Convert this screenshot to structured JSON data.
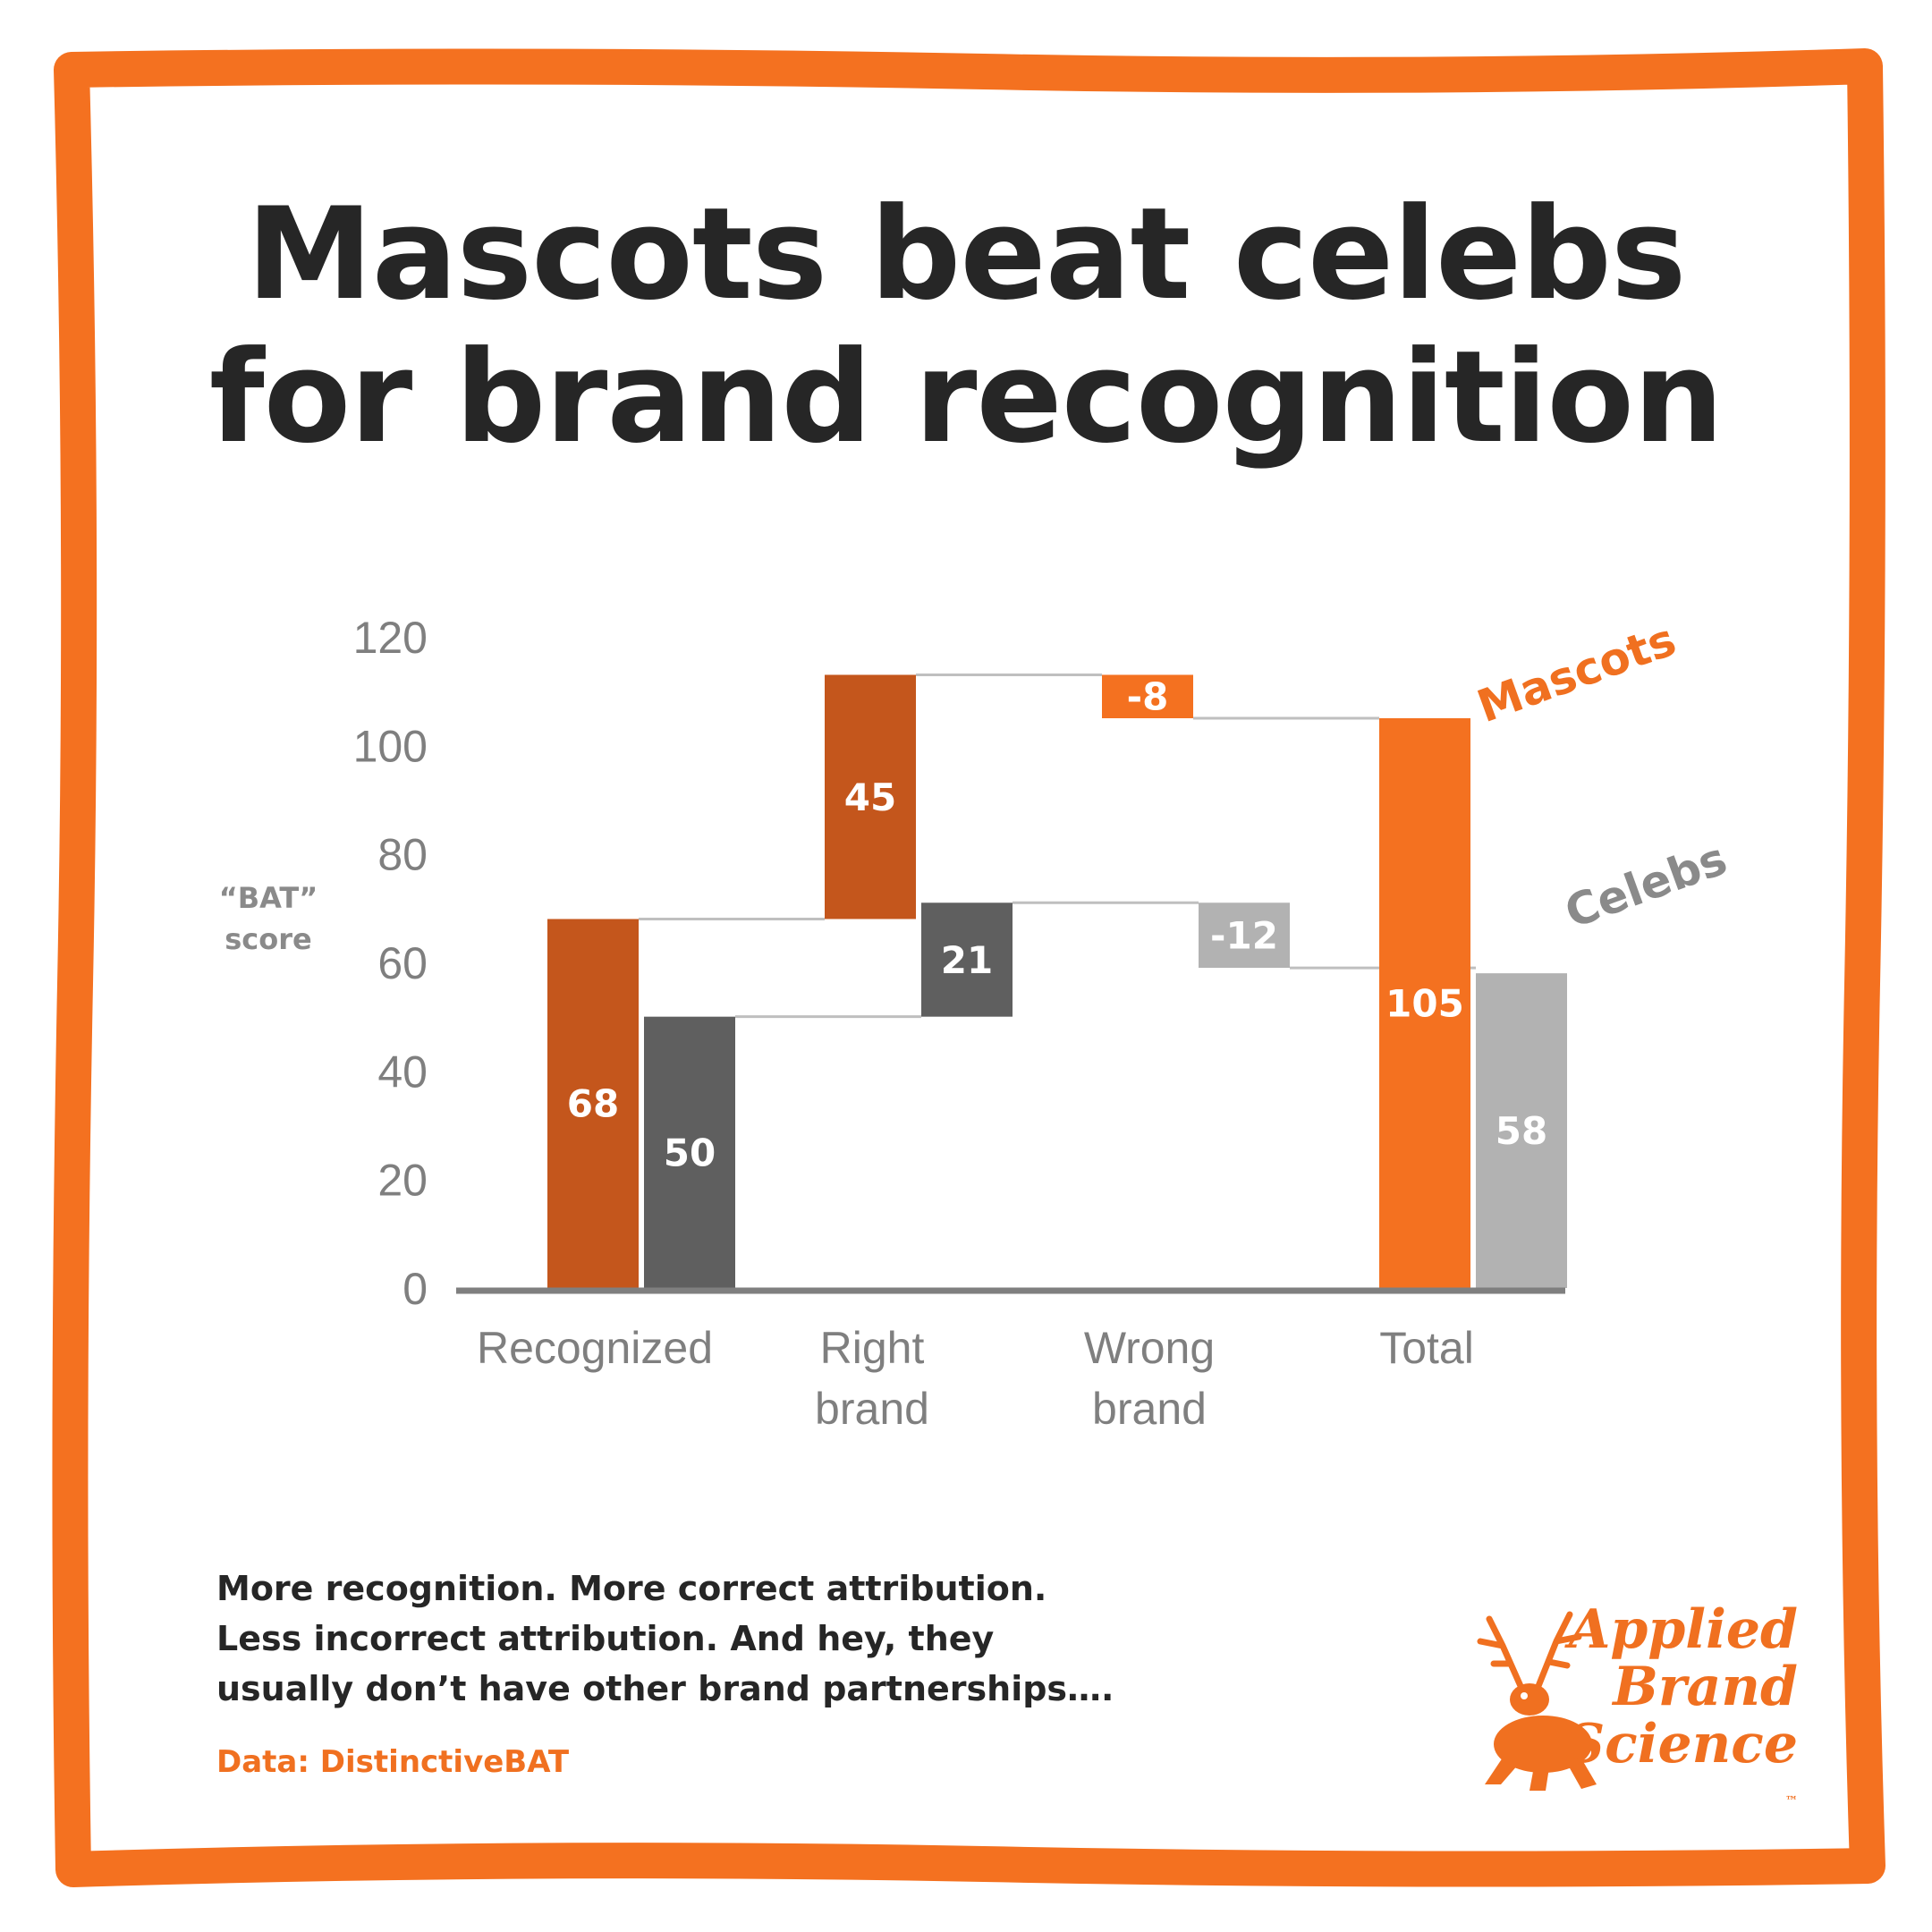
{
  "title": {
    "line1": "Mascots beat celebs",
    "line2": "for brand recognition"
  },
  "chart_data": {
    "type": "waterfall",
    "categories": [
      "Recognized",
      "Right brand",
      "Wrong brand",
      "Total"
    ],
    "category_lines": [
      [
        "Recognized"
      ],
      [
        "Right",
        "brand"
      ],
      [
        "Wrong",
        "brand"
      ],
      [
        "Total"
      ]
    ],
    "ylabel_lines": [
      "“BAT”",
      "score"
    ],
    "ylim": [
      0,
      120
    ],
    "yticks": [
      "0",
      "20",
      "40",
      "60",
      "80",
      "100",
      "120"
    ],
    "grid": false,
    "series": [
      {
        "name": "Mascots",
        "values": [
          68,
          45,
          -8,
          105
        ],
        "labels": [
          "68",
          "45",
          "-8",
          "105"
        ],
        "colors": [
          "#c4561c",
          "#c4561c",
          "#f47120",
          "#f47120"
        ]
      },
      {
        "name": "Celebs",
        "values": [
          50,
          21,
          -12,
          58
        ],
        "labels": [
          "50",
          "21",
          "-12",
          "58"
        ],
        "colors": [
          "#5f5f5f",
          "#5f5f5f",
          "#b2b2b2",
          "#b2b2b2"
        ]
      }
    ],
    "series_label_colors": [
      "#f07020",
      "#8a8a8a"
    ]
  },
  "caption": {
    "line1": "More recognition. More correct attribution.",
    "line2": "Less incorrect attribution. And hey, they",
    "line3": "usually don’t have other brand partnerships…."
  },
  "source": "Data: DistinctiveBAT",
  "logo": {
    "line1": "Applied",
    "line2": "Brand",
    "line3": "Science",
    "tm": "™"
  },
  "colors": {
    "frame": "#f47120",
    "title": "#262626",
    "axis": "#7f7f7f",
    "tick_text": "#7f7f7f",
    "bar_label": "#ffffff",
    "connector": "#bfbfbf"
  }
}
